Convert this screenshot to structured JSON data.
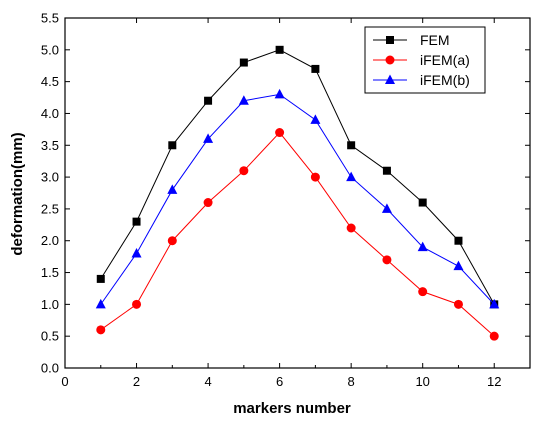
{
  "chart_data": {
    "type": "line",
    "title": "",
    "xlabel": "markers number",
    "ylabel": "deformation(mm)",
    "xlim": [
      0,
      13
    ],
    "ylim": [
      0.0,
      5.5
    ],
    "x_ticks": [
      "0",
      "2",
      "4",
      "6",
      "8",
      "10",
      "12"
    ],
    "y_ticks": [
      "0.0",
      "0.5",
      "1.0",
      "1.5",
      "2.0",
      "2.5",
      "3.0",
      "3.5",
      "4.0",
      "4.5",
      "5.0",
      "5.5"
    ],
    "x": [
      1,
      2,
      3,
      4,
      5,
      6,
      7,
      8,
      9,
      10,
      11,
      12
    ],
    "grid": false,
    "legend_position": "top-right",
    "series": [
      {
        "name": "FEM",
        "color": "#000000",
        "marker": "square",
        "values": [
          1.4,
          2.3,
          3.5,
          4.2,
          4.8,
          5.0,
          4.7,
          3.5,
          3.1,
          2.6,
          2.0,
          1.0
        ]
      },
      {
        "name": "iFEM(a)",
        "color": "#ff0000",
        "marker": "circle",
        "values": [
          0.6,
          1.0,
          2.0,
          2.6,
          3.1,
          3.7,
          3.0,
          2.2,
          1.7,
          1.2,
          1.0,
          0.5
        ]
      },
      {
        "name": "iFEM(b)",
        "color": "#0000ff",
        "marker": "triangle",
        "values": [
          1.0,
          1.8,
          2.8,
          3.6,
          4.2,
          4.3,
          3.9,
          3.0,
          2.5,
          1.9,
          1.6,
          1.0
        ]
      }
    ]
  }
}
